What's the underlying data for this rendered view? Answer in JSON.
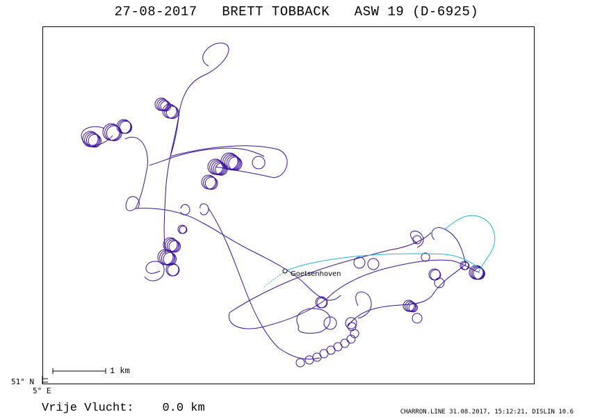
{
  "header": {
    "title": "27-08-2017   BRETT TOBBACK   ASW 19 (D-6925)"
  },
  "map": {
    "lat_label": "51° N",
    "lon_label": "5° E",
    "scale_label": "1 km",
    "place_label": "Goetsenhoven",
    "track_color": "#3a0f9e",
    "final_glide_color": "#1bb8d8"
  },
  "footer": {
    "distance_label": "Vrije Vlucht:",
    "distance_value": "0.0 km",
    "credit": "CHARRON.LINE 31.08.2017, 15:12:21, DISLIN 10.6"
  }
}
